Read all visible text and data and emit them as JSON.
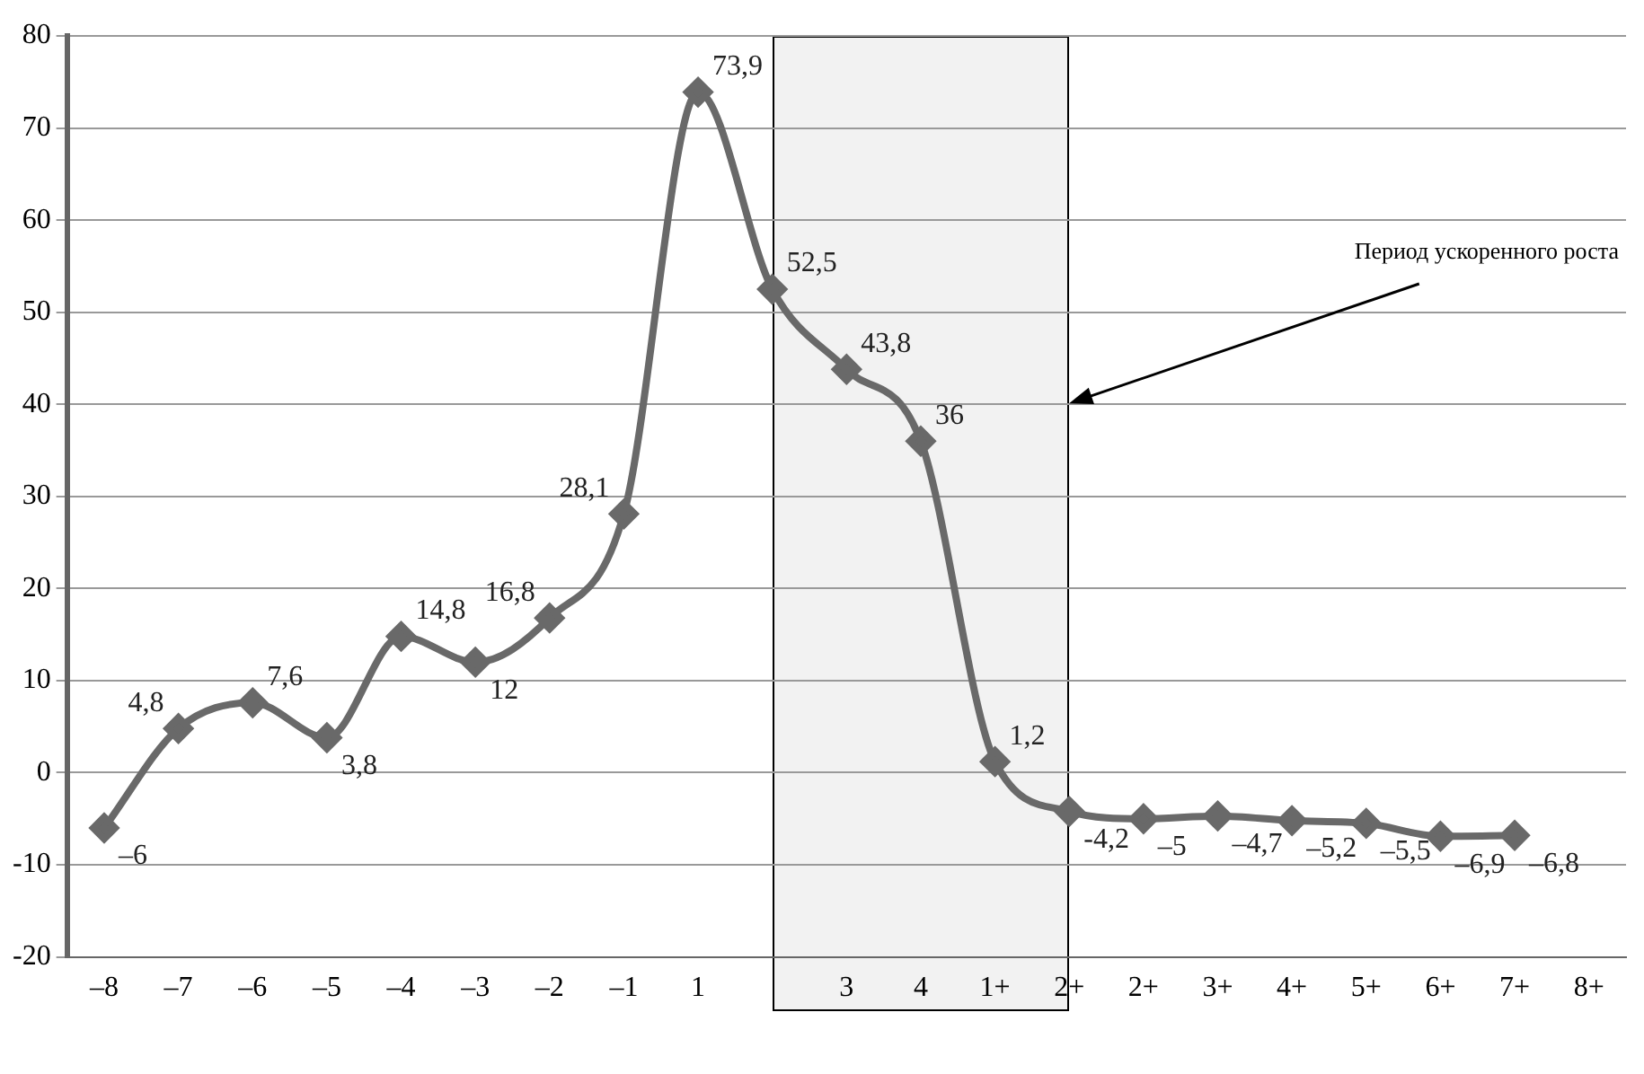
{
  "chart_data": {
    "type": "line",
    "categories": [
      "–8",
      "–7",
      "–6",
      "–5",
      "–4",
      "–3",
      "–2",
      "–1",
      "1",
      null,
      "3",
      "4",
      "1+",
      "2+",
      "2+",
      "3+",
      "4+",
      "5+",
      "6+",
      "7+",
      "8+"
    ],
    "series": [
      {
        "color": "#696969",
        "values": [
          -6,
          4.8,
          7.6,
          3.8,
          14.8,
          12,
          16.8,
          28.1,
          73.9,
          52.5,
          43.8,
          36,
          1.2,
          -4.2,
          -5,
          -4.7,
          -5.2,
          -5.5,
          -6.9,
          -6.8,
          null
        ],
        "value_labels": [
          "–6",
          "4,8",
          "7,6",
          "3,8",
          "14,8",
          "12",
          "16,8",
          "28,1",
          "73,9",
          "52,5",
          "43,8",
          "36",
          "1,2",
          "-4,2",
          "–5",
          "–4,7",
          "–5,2",
          "–5,5",
          "–6,9",
          "–6,8",
          null
        ]
      }
    ],
    "ylim": [
      -20,
      80
    ],
    "yticks": [
      -20,
      -10,
      0,
      10,
      20,
      30,
      40,
      50,
      60,
      70,
      80
    ],
    "grid": "y",
    "marker": "diamond",
    "line_style": "solid",
    "legend": false,
    "annotations": [
      "Период ускоренного роста"
    ]
  }
}
